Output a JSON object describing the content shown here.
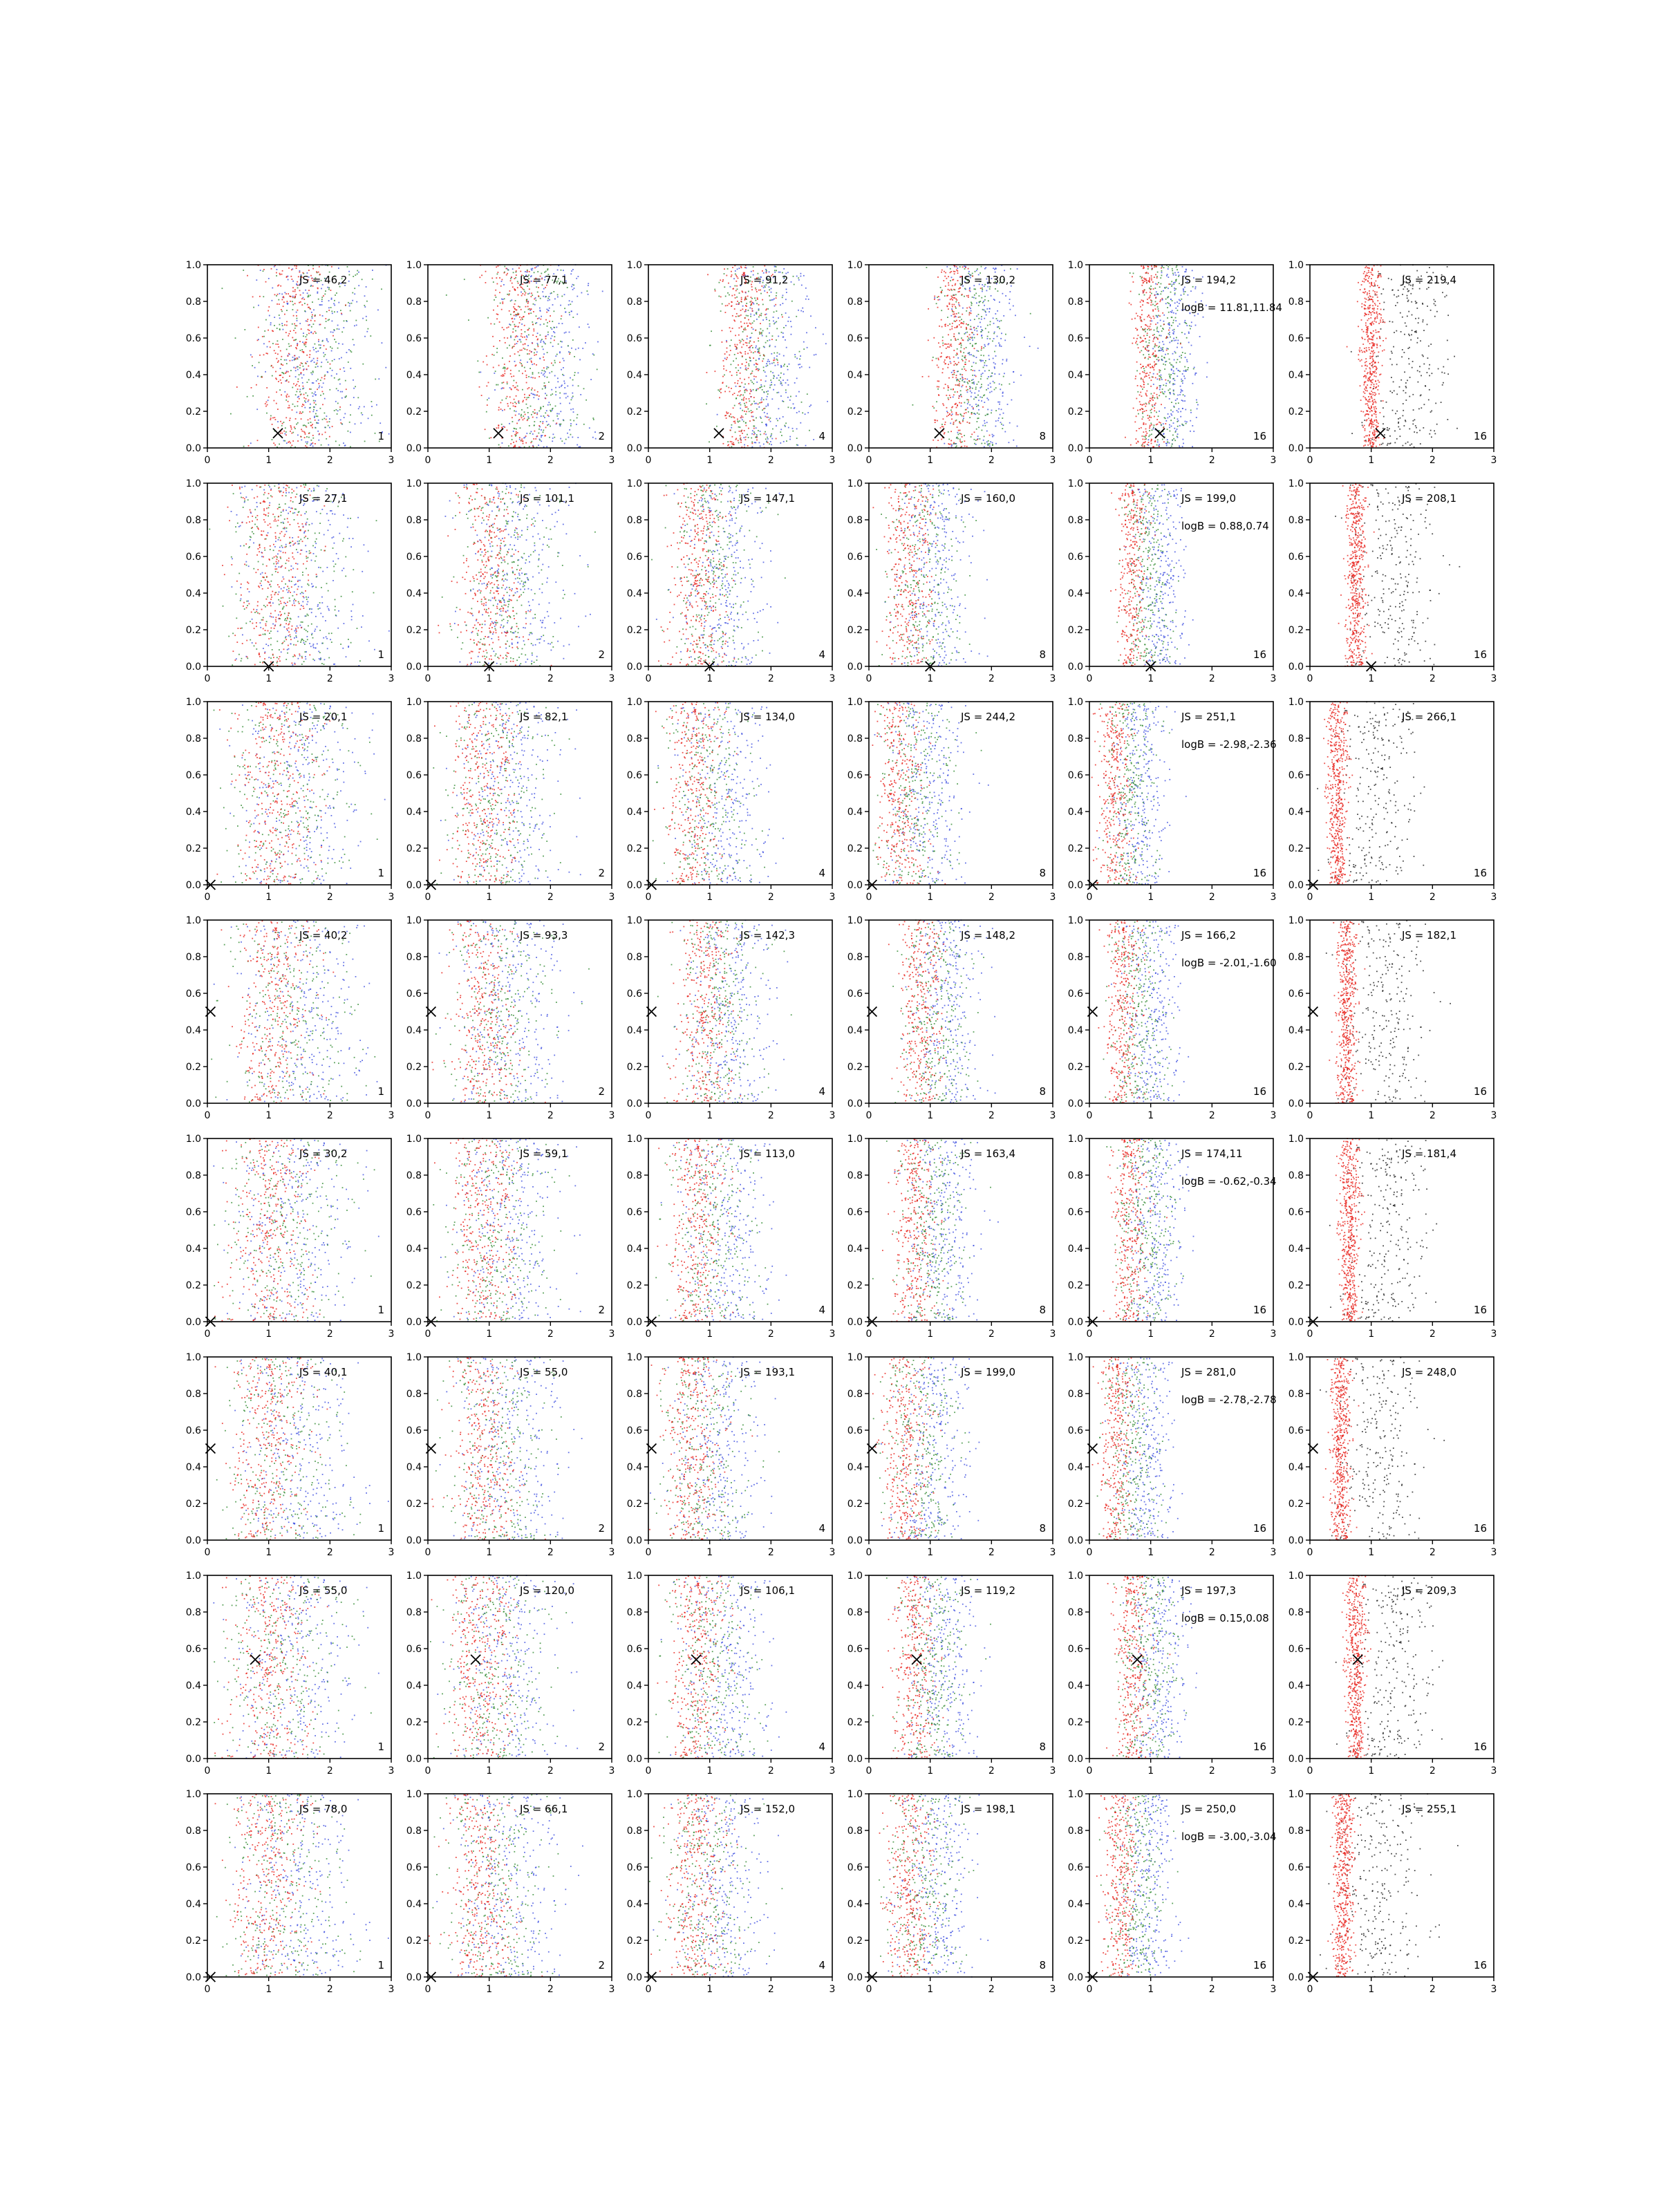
{
  "figure": {
    "rows": 8,
    "cols": 6,
    "colors": {
      "red": "#e8201a",
      "green": "#2f8a2f",
      "blue": "#3d4fe0",
      "black": "#202020",
      "axis": "#000000"
    }
  },
  "axes": {
    "xlim": [
      0,
      3
    ],
    "ylim": [
      0,
      1
    ],
    "xticks": [
      "0",
      "1",
      "2",
      "3"
    ],
    "yticks": [
      "0.0",
      "0.2",
      "0.4",
      "0.6",
      "0.8",
      "1.0"
    ]
  },
  "chart_data": {
    "type": "scatter",
    "xlim": [
      0,
      3
    ],
    "ylim": [
      0,
      1
    ],
    "grid": false,
    "panels": [
      {
        "row": 0,
        "col": 0,
        "js": "JS = 46,2",
        "logb": "",
        "corner": "1",
        "marker": [
          1.15,
          0.08
        ],
        "center": 1.5,
        "spread": 0.9
      },
      {
        "row": 0,
        "col": 1,
        "js": "JS = 77,1",
        "logb": "",
        "corner": "2",
        "marker": [
          1.15,
          0.08
        ],
        "center": 1.6,
        "spread": 0.7
      },
      {
        "row": 0,
        "col": 2,
        "js": "JS = 91,2",
        "logb": "",
        "corner": "4",
        "marker": [
          1.15,
          0.08
        ],
        "center": 1.65,
        "spread": 0.6
      },
      {
        "row": 0,
        "col": 3,
        "js": "JS = 130,2",
        "logb": "",
        "corner": "8",
        "marker": [
          1.15,
          0.08
        ],
        "center": 1.5,
        "spread": 0.5
      },
      {
        "row": 0,
        "col": 4,
        "js": "JS = 194,2",
        "logb": "logB = 11.81,11.84",
        "corner": "16",
        "marker": [
          1.15,
          0.08
        ],
        "center": 1.05,
        "spread": 0.35
      },
      {
        "row": 0,
        "col": 5,
        "js": "JS = 219,4",
        "logb": "",
        "corner": "16",
        "marker": [
          1.15,
          0.08
        ],
        "center": 1.0,
        "spread": 0.3
      },
      {
        "row": 1,
        "col": 0,
        "js": "JS = 27,1",
        "logb": "",
        "corner": "1",
        "marker": [
          1.0,
          0.0
        ],
        "center": 1.2,
        "spread": 0.9
      },
      {
        "row": 1,
        "col": 1,
        "js": "JS = 101,1",
        "logb": "",
        "corner": "2",
        "marker": [
          1.0,
          0.0
        ],
        "center": 1.1,
        "spread": 0.75
      },
      {
        "row": 1,
        "col": 2,
        "js": "JS = 147,1",
        "logb": "",
        "corner": "4",
        "marker": [
          1.0,
          0.0
        ],
        "center": 0.9,
        "spread": 0.65
      },
      {
        "row": 1,
        "col": 3,
        "js": "JS = 160,0",
        "logb": "",
        "corner": "8",
        "marker": [
          1.0,
          0.0
        ],
        "center": 0.75,
        "spread": 0.55
      },
      {
        "row": 1,
        "col": 4,
        "js": "JS = 199,0",
        "logb": "logB = 0.88,0.74",
        "corner": "16",
        "marker": [
          1.0,
          0.0
        ],
        "center": 0.8,
        "spread": 0.35
      },
      {
        "row": 1,
        "col": 5,
        "js": "JS = 208,1",
        "logb": "",
        "corner": "16",
        "marker": [
          1.0,
          0.0
        ],
        "center": 0.75,
        "spread": 0.3
      },
      {
        "row": 2,
        "col": 0,
        "js": "JS = 20,1",
        "logb": "",
        "corner": "1",
        "marker": [
          0.05,
          0.0
        ],
        "center": 1.2,
        "spread": 0.9
      },
      {
        "row": 2,
        "col": 1,
        "js": "JS = 82,1",
        "logb": "",
        "corner": "2",
        "marker": [
          0.05,
          0.0
        ],
        "center": 1.0,
        "spread": 0.75
      },
      {
        "row": 2,
        "col": 2,
        "js": "JS = 134,0",
        "logb": "",
        "corner": "4",
        "marker": [
          0.05,
          0.0
        ],
        "center": 0.85,
        "spread": 0.65
      },
      {
        "row": 2,
        "col": 3,
        "js": "JS = 244,2",
        "logb": "",
        "corner": "8",
        "marker": [
          0.05,
          0.0
        ],
        "center": 0.6,
        "spread": 0.55
      },
      {
        "row": 2,
        "col": 4,
        "js": "JS = 251,1",
        "logb": "logB = -2.98,-2.36",
        "corner": "16",
        "marker": [
          0.05,
          0.0
        ],
        "center": 0.5,
        "spread": 0.4
      },
      {
        "row": 2,
        "col": 5,
        "js": "JS = 266,1",
        "logb": "",
        "corner": "16",
        "marker": [
          0.05,
          0.0
        ],
        "center": 0.45,
        "spread": 0.3
      },
      {
        "row": 3,
        "col": 0,
        "js": "JS = 40,2",
        "logb": "",
        "corner": "1",
        "marker": [
          0.05,
          0.5
        ],
        "center": 1.2,
        "spread": 0.9
      },
      {
        "row": 3,
        "col": 1,
        "js": "JS = 93,3",
        "logb": "",
        "corner": "2",
        "marker": [
          0.05,
          0.5
        ],
        "center": 1.0,
        "spread": 0.75
      },
      {
        "row": 3,
        "col": 2,
        "js": "JS = 142,3",
        "logb": "",
        "corner": "4",
        "marker": [
          0.05,
          0.5
        ],
        "center": 1.0,
        "spread": 0.65
      },
      {
        "row": 3,
        "col": 3,
        "js": "JS = 148,2",
        "logb": "",
        "corner": "8",
        "marker": [
          0.05,
          0.5
        ],
        "center": 0.95,
        "spread": 0.5
      },
      {
        "row": 3,
        "col": 4,
        "js": "JS = 166,2",
        "logb": "logB = -2.01,-1.60",
        "corner": "16",
        "marker": [
          0.05,
          0.5
        ],
        "center": 0.65,
        "spread": 0.4
      },
      {
        "row": 3,
        "col": 5,
        "js": "JS = 182,1",
        "logb": "",
        "corner": "16",
        "marker": [
          0.05,
          0.5
        ],
        "center": 0.6,
        "spread": 0.3
      },
      {
        "row": 4,
        "col": 0,
        "js": "JS = 30,2",
        "logb": "",
        "corner": "1",
        "marker": [
          0.05,
          0.0
        ],
        "center": 1.1,
        "spread": 0.9
      },
      {
        "row": 4,
        "col": 1,
        "js": "JS = 59,1",
        "logb": "",
        "corner": "2",
        "marker": [
          0.05,
          0.0
        ],
        "center": 1.0,
        "spread": 0.75
      },
      {
        "row": 4,
        "col": 2,
        "js": "JS = 113,0",
        "logb": "",
        "corner": "4",
        "marker": [
          0.05,
          0.0
        ],
        "center": 0.9,
        "spread": 0.65
      },
      {
        "row": 4,
        "col": 3,
        "js": "JS = 163,4",
        "logb": "",
        "corner": "8",
        "marker": [
          0.05,
          0.0
        ],
        "center": 0.85,
        "spread": 0.5
      },
      {
        "row": 4,
        "col": 4,
        "js": "JS = 174,11",
        "logb": "logB = -0.62,-0.34",
        "corner": "16",
        "marker": [
          0.05,
          0.0
        ],
        "center": 0.75,
        "spread": 0.4
      },
      {
        "row": 4,
        "col": 5,
        "js": "JS = 181,4",
        "logb": "",
        "corner": "16",
        "marker": [
          0.05,
          0.0
        ],
        "center": 0.65,
        "spread": 0.3
      },
      {
        "row": 5,
        "col": 0,
        "js": "JS = 40,1",
        "logb": "",
        "corner": "1",
        "marker": [
          0.05,
          0.5
        ],
        "center": 1.1,
        "spread": 0.9
      },
      {
        "row": 5,
        "col": 1,
        "js": "JS = 55,0",
        "logb": "",
        "corner": "2",
        "marker": [
          0.05,
          0.5
        ],
        "center": 1.0,
        "spread": 0.75
      },
      {
        "row": 5,
        "col": 2,
        "js": "JS = 193,1",
        "logb": "",
        "corner": "4",
        "marker": [
          0.05,
          0.5
        ],
        "center": 0.8,
        "spread": 0.65
      },
      {
        "row": 5,
        "col": 3,
        "js": "JS = 199,0",
        "logb": "",
        "corner": "8",
        "marker": [
          0.05,
          0.5
        ],
        "center": 0.7,
        "spread": 0.55
      },
      {
        "row": 5,
        "col": 4,
        "js": "JS = 281,0",
        "logb": "logB = -2.78,-2.78",
        "corner": "16",
        "marker": [
          0.05,
          0.5
        ],
        "center": 0.55,
        "spread": 0.4
      },
      {
        "row": 5,
        "col": 5,
        "js": "JS = 248,0",
        "logb": "",
        "corner": "16",
        "marker": [
          0.05,
          0.5
        ],
        "center": 0.5,
        "spread": 0.3
      },
      {
        "row": 6,
        "col": 0,
        "js": "JS = 55,0",
        "logb": "",
        "corner": "1",
        "marker": [
          0.78,
          0.54
        ],
        "center": 1.1,
        "spread": 0.9
      },
      {
        "row": 6,
        "col": 1,
        "js": "JS = 120,0",
        "logb": "",
        "corner": "2",
        "marker": [
          0.78,
          0.54
        ],
        "center": 0.95,
        "spread": 0.75
      },
      {
        "row": 6,
        "col": 2,
        "js": "JS = 106,1",
        "logb": "",
        "corner": "4",
        "marker": [
          0.78,
          0.54
        ],
        "center": 0.9,
        "spread": 0.65
      },
      {
        "row": 6,
        "col": 3,
        "js": "JS = 119,2",
        "logb": "",
        "corner": "8",
        "marker": [
          0.78,
          0.54
        ],
        "center": 0.85,
        "spread": 0.5
      },
      {
        "row": 6,
        "col": 4,
        "js": "JS = 197,3",
        "logb": "logB = 0.15,0.08",
        "corner": "16",
        "marker": [
          0.78,
          0.54
        ],
        "center": 0.8,
        "spread": 0.4
      },
      {
        "row": 6,
        "col": 5,
        "js": "JS = 209,3",
        "logb": "",
        "corner": "16",
        "marker": [
          0.78,
          0.54
        ],
        "center": 0.75,
        "spread": 0.3
      },
      {
        "row": 7,
        "col": 0,
        "js": "JS = 78,0",
        "logb": "",
        "corner": "1",
        "marker": [
          0.05,
          0.0
        ],
        "center": 1.1,
        "spread": 0.9
      },
      {
        "row": 7,
        "col": 1,
        "js": "JS = 66,1",
        "logb": "",
        "corner": "2",
        "marker": [
          0.05,
          0.0
        ],
        "center": 0.95,
        "spread": 0.75
      },
      {
        "row": 7,
        "col": 2,
        "js": "JS = 152,0",
        "logb": "",
        "corner": "4",
        "marker": [
          0.05,
          0.0
        ],
        "center": 0.85,
        "spread": 0.65
      },
      {
        "row": 7,
        "col": 3,
        "js": "JS = 198,1",
        "logb": "",
        "corner": "8",
        "marker": [
          0.05,
          0.0
        ],
        "center": 0.75,
        "spread": 0.55
      },
      {
        "row": 7,
        "col": 4,
        "js": "JS = 250,0",
        "logb": "logB = -3.00,-3.04",
        "corner": "16",
        "marker": [
          0.05,
          0.0
        ],
        "center": 0.6,
        "spread": 0.4
      },
      {
        "row": 7,
        "col": 5,
        "js": "JS = 255,1",
        "logb": "",
        "corner": "16",
        "marker": [
          0.05,
          0.0
        ],
        "center": 0.55,
        "spread": 0.3
      }
    ]
  }
}
